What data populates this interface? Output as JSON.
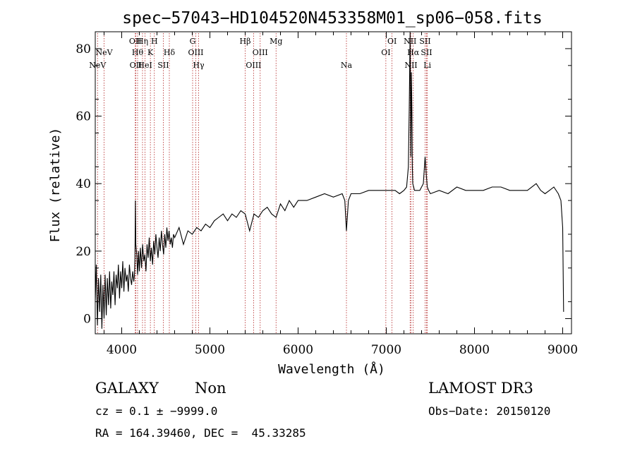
{
  "chart_data": {
    "type": "line",
    "title": "spec−57043−HD104520N453358M01_sp06−058.fits",
    "xlabel": "Wavelength (Å)",
    "ylabel": "Flux (relative)",
    "xlim": [
      3700,
      9100
    ],
    "ylim": [
      -4.5,
      85
    ],
    "xticks": [
      4000,
      5000,
      6000,
      7000,
      8000,
      9000
    ],
    "yticks": [
      0,
      20,
      40,
      60,
      80
    ],
    "grid": false,
    "line_color": "#000000",
    "marker_color": "#b22222",
    "spectral_lines": [
      {
        "name": "NeV",
        "wavelength": 3726,
        "row": 3
      },
      {
        "name": "NeV",
        "wavelength": 3800,
        "row": 2
      },
      {
        "name": "OII",
        "wavelength": 4154,
        "row": 1
      },
      {
        "name": "OII",
        "wavelength": 4160,
        "row": 3
      },
      {
        "name": "Hθ",
        "wavelength": 4180,
        "row": 2
      },
      {
        "name": "Hη",
        "wavelength": 4236,
        "row": 1
      },
      {
        "name": "HeI",
        "wavelength": 4265,
        "row": 3
      },
      {
        "name": "K",
        "wavelength": 4325,
        "row": 2
      },
      {
        "name": "H",
        "wavelength": 4370,
        "row": 1
      },
      {
        "name": "SII",
        "wavelength": 4472,
        "row": 3
      },
      {
        "name": "Hδ",
        "wavelength": 4540,
        "row": 2
      },
      {
        "name": "G",
        "wavelength": 4804,
        "row": 1
      },
      {
        "name": "OIII",
        "wavelength": 4840,
        "row": 2
      },
      {
        "name": "Hγ",
        "wavelength": 4872,
        "row": 3
      },
      {
        "name": "Hβ",
        "wavelength": 5400,
        "row": 1
      },
      {
        "name": "OIII",
        "wavelength": 5495,
        "row": 3
      },
      {
        "name": "OIII",
        "wavelength": 5570,
        "row": 2
      },
      {
        "name": "Mg",
        "wavelength": 5750,
        "row": 1
      },
      {
        "name": "Na",
        "wavelength": 6548,
        "row": 3
      },
      {
        "name": "OI",
        "wavelength": 6995,
        "row": 2
      },
      {
        "name": "OI",
        "wavelength": 7065,
        "row": 1
      },
      {
        "name": "NII",
        "wavelength": 7270,
        "row": 1
      },
      {
        "name": "NII",
        "wavelength": 7280,
        "row": 3
      },
      {
        "name": "Hα",
        "wavelength": 7305,
        "row": 2
      },
      {
        "name": "SII",
        "wavelength": 7440,
        "row": 1
      },
      {
        "name": "SII",
        "wavelength": 7456,
        "row": 2
      },
      {
        "name": "Li",
        "wavelength": 7465,
        "row": 3
      }
    ],
    "series": [
      {
        "x": [
          3700,
          3712,
          3725,
          3737,
          3750,
          3762,
          3775,
          3787,
          3800,
          3812,
          3825,
          3837,
          3850,
          3862,
          3875,
          3887,
          3900,
          3912,
          3925,
          3937,
          3950,
          3962,
          3975,
          3987,
          4000,
          4012,
          4025,
          4037,
          4050,
          4062,
          4075,
          4087,
          4100,
          4112,
          4125,
          4137,
          4145,
          4150,
          4155,
          4160,
          4170,
          4180,
          4190,
          4200,
          4212,
          4225,
          4237,
          4250,
          4262,
          4275,
          4287,
          4300,
          4312,
          4325,
          4337,
          4350,
          4362,
          4375,
          4387,
          4400,
          4412,
          4425,
          4437,
          4450,
          4462,
          4475,
          4487,
          4500,
          4512,
          4525,
          4537,
          4550,
          4562,
          4575,
          4587,
          4600,
          4650,
          4700,
          4750,
          4800,
          4850,
          4900,
          4950,
          5000,
          5050,
          5100,
          5150,
          5200,
          5250,
          5300,
          5350,
          5400,
          5450,
          5500,
          5550,
          5600,
          5650,
          5700,
          5750,
          5800,
          5850,
          5900,
          5950,
          6000,
          6100,
          6200,
          6300,
          6400,
          6500,
          6530,
          6548,
          6570,
          6600,
          6700,
          6800,
          6900,
          7000,
          7100,
          7150,
          7200,
          7230,
          7250,
          7260,
          7270,
          7278,
          7285,
          7290,
          7295,
          7300,
          7310,
          7320,
          7340,
          7360,
          7380,
          7400,
          7420,
          7440,
          7455,
          7465,
          7480,
          7500,
          7600,
          7700,
          7800,
          7900,
          8000,
          8100,
          8200,
          8300,
          8400,
          8500,
          8600,
          8700,
          8750,
          8800,
          8850,
          8900,
          8950,
          8980,
          9000,
          9010
        ],
        "y": [
          5,
          16,
          -2,
          12,
          2,
          13,
          -3,
          10,
          0,
          13,
          1,
          12,
          4,
          14,
          3,
          11,
          7,
          14,
          4,
          13,
          9,
          16,
          6,
          14,
          9,
          17,
          8,
          15,
          11,
          13,
          8,
          16,
          12,
          10,
          14,
          11,
          13,
          18,
          35,
          22,
          19,
          13,
          20,
          14,
          21,
          15,
          22,
          17,
          19,
          14,
          22,
          18,
          24,
          17,
          21,
          16,
          23,
          19,
          25,
          21,
          18,
          24,
          20,
          26,
          22,
          19,
          25,
          21,
          27,
          23,
          26,
          22,
          24,
          21,
          25,
          24,
          27,
          22,
          26,
          25,
          27,
          26,
          28,
          27,
          29,
          30,
          31,
          29,
          31,
          30,
          32,
          31,
          26,
          31,
          30,
          32,
          33,
          31,
          30,
          34,
          32,
          35,
          33,
          35,
          35,
          36,
          37,
          36,
          37,
          35,
          26,
          35,
          37,
          37,
          38,
          38,
          38,
          38,
          37,
          38,
          39,
          45,
          62,
          87,
          48,
          73,
          61,
          45,
          40,
          39,
          38,
          38,
          38,
          38,
          39,
          40,
          48,
          42,
          39,
          38,
          37,
          38,
          37,
          39,
          38,
          38,
          38,
          39,
          39,
          38,
          38,
          38,
          40,
          38,
          37,
          38,
          39,
          37,
          35,
          27,
          2
        ]
      }
    ]
  },
  "footer": {
    "object_type": "GALAXY",
    "subclass": "Non",
    "survey": "LAMOST DR3",
    "redshift": "cz = 0.1 ± −9999.0",
    "obs_date": "Obs−Date: 20150120",
    "coords": "RA = 164.39460, DEC =  45.33285"
  }
}
